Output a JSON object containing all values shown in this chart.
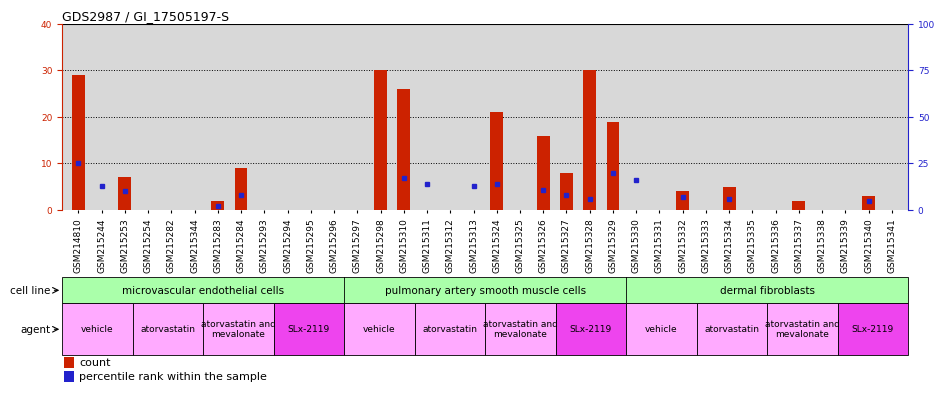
{
  "title": "GDS2987 / GI_17505197-S",
  "samples": [
    "GSM214810",
    "GSM215244",
    "GSM215253",
    "GSM215254",
    "GSM215282",
    "GSM215344",
    "GSM215283",
    "GSM215284",
    "GSM215293",
    "GSM215294",
    "GSM215295",
    "GSM215296",
    "GSM215297",
    "GSM215298",
    "GSM215310",
    "GSM215311",
    "GSM215312",
    "GSM215313",
    "GSM215324",
    "GSM215325",
    "GSM215326",
    "GSM215327",
    "GSM215328",
    "GSM215329",
    "GSM215330",
    "GSM215331",
    "GSM215332",
    "GSM215333",
    "GSM215334",
    "GSM215335",
    "GSM215336",
    "GSM215337",
    "GSM215338",
    "GSM215339",
    "GSM215340",
    "GSM215341"
  ],
  "counts": [
    29,
    0,
    7,
    0,
    0,
    0,
    2,
    9,
    0,
    0,
    0,
    0,
    0,
    30,
    26,
    0,
    0,
    0,
    21,
    0,
    16,
    8,
    30,
    19,
    0,
    0,
    4,
    0,
    5,
    0,
    0,
    2,
    0,
    0,
    3,
    0
  ],
  "percentiles": [
    25,
    13,
    10,
    0,
    0,
    0,
    2,
    8,
    0,
    0,
    0,
    0,
    0,
    0,
    17,
    14,
    0,
    13,
    14,
    0,
    11,
    8,
    6,
    20,
    16,
    0,
    7,
    0,
    6,
    0,
    0,
    0,
    0,
    0,
    5,
    0
  ],
  "ylim_left": [
    0,
    40
  ],
  "ylim_right": [
    0,
    100
  ],
  "yticks_left": [
    0,
    10,
    20,
    30,
    40
  ],
  "yticks_right": [
    0,
    25,
    50,
    75,
    100
  ],
  "bar_color": "#cc2200",
  "dot_color": "#2222cc",
  "cell_lines": [
    {
      "label": "microvascular endothelial cells",
      "start": 0,
      "end": 12
    },
    {
      "label": "pulmonary artery smooth muscle cells",
      "start": 12,
      "end": 24
    },
    {
      "label": "dermal fibroblasts",
      "start": 24,
      "end": 36
    }
  ],
  "agents": [
    {
      "label": "vehicle",
      "start": 0,
      "end": 3,
      "color": "#ffaaff"
    },
    {
      "label": "atorvastatin",
      "start": 3,
      "end": 6,
      "color": "#ffaaff"
    },
    {
      "label": "atorvastatin and\nmevalonate",
      "start": 6,
      "end": 9,
      "color": "#ffaaff"
    },
    {
      "label": "SLx-2119",
      "start": 9,
      "end": 12,
      "color": "#ee44ee"
    },
    {
      "label": "vehicle",
      "start": 12,
      "end": 15,
      "color": "#ffaaff"
    },
    {
      "label": "atorvastatin",
      "start": 15,
      "end": 18,
      "color": "#ffaaff"
    },
    {
      "label": "atorvastatin and\nmevalonate",
      "start": 18,
      "end": 21,
      "color": "#ffaaff"
    },
    {
      "label": "SLx-2119",
      "start": 21,
      "end": 24,
      "color": "#ee44ee"
    },
    {
      "label": "vehicle",
      "start": 24,
      "end": 27,
      "color": "#ffaaff"
    },
    {
      "label": "atorvastatin",
      "start": 27,
      "end": 30,
      "color": "#ffaaff"
    },
    {
      "label": "atorvastatin and\nmevalonate",
      "start": 30,
      "end": 33,
      "color": "#ffaaff"
    },
    {
      "label": "SLx-2119",
      "start": 33,
      "end": 36,
      "color": "#ee44ee"
    }
  ],
  "cell_line_color": "#aaffaa",
  "bg_color": "#d8d8d8",
  "title_fontsize": 9,
  "tick_fontsize": 6.5,
  "annot_fontsize": 7.5,
  "legend_fontsize": 8
}
